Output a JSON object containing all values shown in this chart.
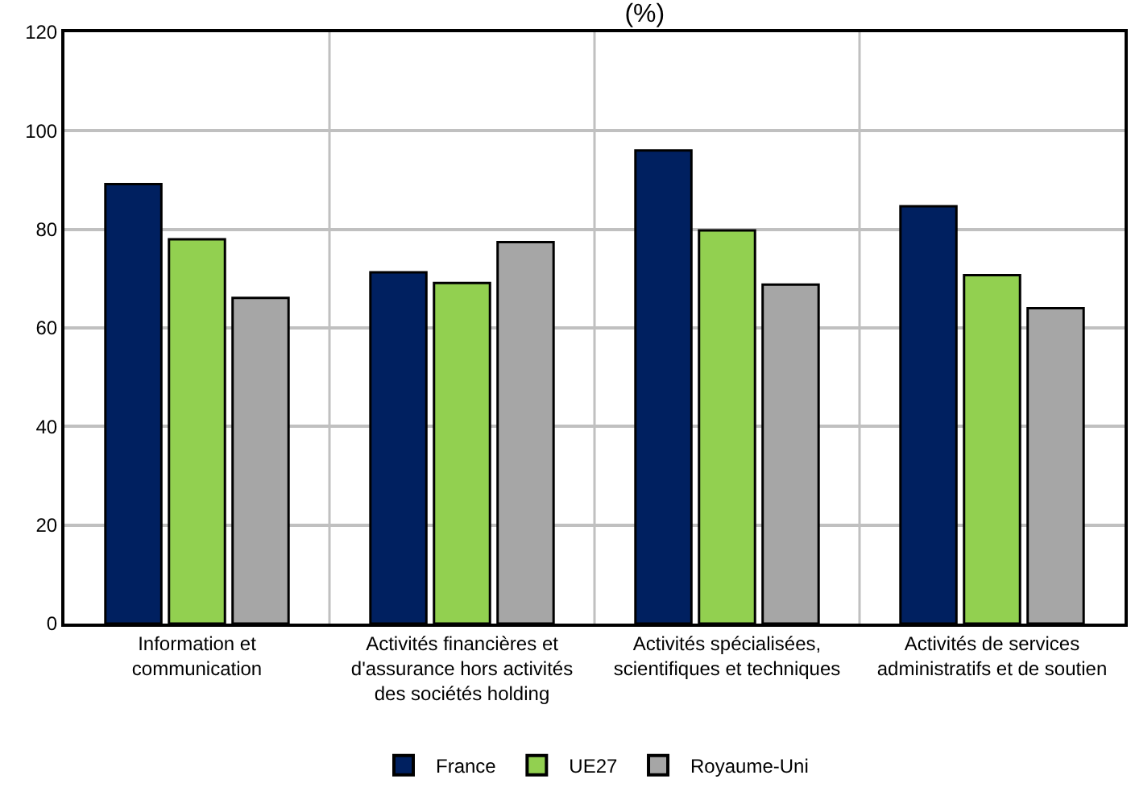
{
  "chart_data": {
    "type": "bar",
    "title": "(%)",
    "categories": [
      "Information et\ncommunication",
      "Activités financières et\nd'assurance hors activités\ndes sociétés holding",
      "Activités spécialisées,\nscientifiques et techniques",
      "Activités de services\nadministratifs et de soutien"
    ],
    "series": [
      {
        "name": "France",
        "color": "#002060",
        "values": [
          89.2,
          71.3,
          96.0,
          84.7
        ]
      },
      {
        "name": "UE27",
        "color": "#92d050",
        "values": [
          78.0,
          69.1,
          79.8,
          70.7
        ]
      },
      {
        "name": "Royaume-Uni",
        "color": "#a6a6a6",
        "values": [
          66.1,
          77.4,
          68.8,
          64.0
        ]
      }
    ],
    "ylim": [
      0,
      120
    ],
    "yticks": [
      0,
      20,
      40,
      60,
      80,
      100,
      120
    ],
    "grid": true,
    "legend": "bottom"
  }
}
